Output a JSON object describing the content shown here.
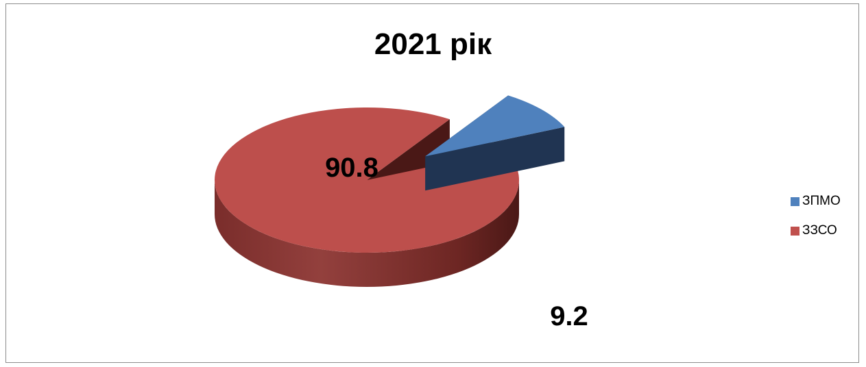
{
  "chart_data": {
    "type": "pie",
    "title": "2021 рік",
    "categories": [
      "ЗПМО",
      "ЗЗСО"
    ],
    "values": [
      9.2,
      90.8
    ],
    "data_labels": [
      "9.2",
      "90.8"
    ],
    "colors": [
      "#4f81bd",
      "#c0504d"
    ],
    "legend_position": "right",
    "style": "3d-exploded"
  }
}
